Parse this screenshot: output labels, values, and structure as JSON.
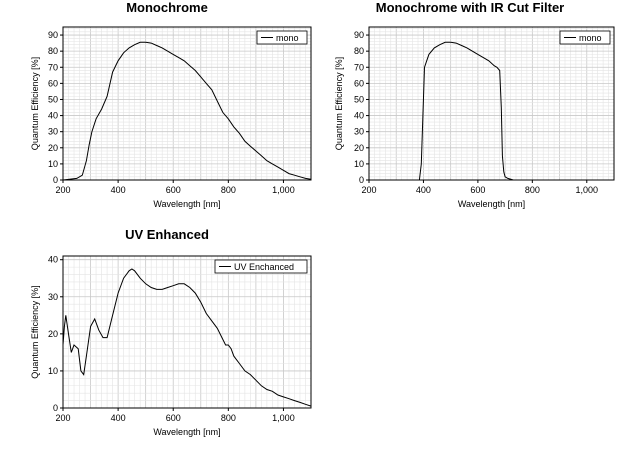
{
  "chart_data": [
    {
      "type": "line",
      "title": "Monochrome",
      "xlabel": "Wavelength [nm]",
      "ylabel": "Quantum Efficiency [%]",
      "xlim": [
        200,
        1100
      ],
      "ylim": [
        0,
        95
      ],
      "xticks": [
        200,
        400,
        600,
        800,
        1000
      ],
      "xtick_labels": [
        "200",
        "400",
        "600",
        "800",
        "1,000"
      ],
      "yticks": [
        0,
        10,
        20,
        30,
        40,
        50,
        60,
        70,
        80,
        90
      ],
      "grid": true,
      "legend_position": "top-right",
      "series": [
        {
          "name": "mono",
          "x": [
            200,
            250,
            270,
            285,
            295,
            305,
            320,
            340,
            360,
            380,
            400,
            420,
            440,
            460,
            480,
            500,
            520,
            540,
            560,
            580,
            600,
            620,
            640,
            660,
            680,
            700,
            720,
            740,
            760,
            780,
            800,
            820,
            840,
            860,
            880,
            900,
            920,
            940,
            960,
            980,
            1000,
            1020,
            1040,
            1060,
            1080,
            1100
          ],
          "y": [
            0,
            1,
            3,
            12,
            22,
            30,
            38,
            44,
            52,
            67,
            74,
            79,
            82,
            84,
            85.5,
            85.5,
            85,
            83.5,
            82,
            80,
            78,
            76,
            74,
            71,
            68,
            64,
            60,
            56,
            49,
            42,
            38,
            33,
            29,
            24,
            21,
            18,
            15,
            12,
            10,
            8,
            6,
            4,
            3,
            2,
            1,
            0.5
          ]
        }
      ]
    },
    {
      "type": "line",
      "title": "Monochrome with IR Cut Filter",
      "xlabel": "Wavelength [nm]",
      "ylabel": "Quantum Efficiency [%]",
      "xlim": [
        200,
        1100
      ],
      "ylim": [
        0,
        95
      ],
      "xticks": [
        200,
        400,
        600,
        800,
        1000
      ],
      "xtick_labels": [
        "200",
        "400",
        "600",
        "800",
        "1,000"
      ],
      "yticks": [
        0,
        10,
        20,
        30,
        40,
        50,
        60,
        70,
        80,
        90
      ],
      "grid": true,
      "legend_position": "top-right",
      "series": [
        {
          "name": "mono",
          "x": [
            200,
            385,
            392,
            398,
            404,
            412,
            420,
            440,
            460,
            480,
            500,
            520,
            540,
            560,
            580,
            600,
            620,
            640,
            660,
            670,
            680,
            686,
            690,
            695,
            700,
            710,
            730,
            1100
          ],
          "y": [
            0,
            0,
            10,
            40,
            70,
            74,
            78,
            82,
            84,
            85.5,
            85.5,
            85,
            83.5,
            82,
            80,
            78,
            76,
            74,
            71,
            70,
            68,
            45,
            15,
            5,
            2,
            1,
            0,
            0
          ]
        }
      ]
    },
    {
      "type": "line",
      "title": "UV Enhanced",
      "xlabel": "Wavelength [nm]",
      "ylabel": "Quantum Efficiency [%]",
      "xlim": [
        200,
        1100
      ],
      "ylim": [
        0,
        41
      ],
      "xticks": [
        200,
        400,
        600,
        800,
        1000
      ],
      "xtick_labels": [
        "200",
        "400",
        "600",
        "800",
        "1,000"
      ],
      "yticks": [
        0,
        10,
        20,
        30,
        40
      ],
      "grid": true,
      "legend_position": "top-right",
      "series": [
        {
          "name": "UV Enchanced",
          "x": [
            200,
            205,
            210,
            220,
            230,
            240,
            255,
            265,
            275,
            285,
            300,
            315,
            330,
            345,
            360,
            380,
            400,
            420,
            440,
            450,
            460,
            480,
            500,
            520,
            540,
            560,
            580,
            600,
            620,
            640,
            660,
            680,
            700,
            720,
            740,
            760,
            780,
            790,
            800,
            810,
            820,
            830,
            840,
            860,
            880,
            900,
            920,
            940,
            960,
            980,
            1000,
            1020,
            1040,
            1060,
            1080,
            1100
          ],
          "y": [
            17,
            22,
            25,
            20,
            15,
            17,
            16,
            10,
            9,
            14,
            22,
            24,
            21,
            19,
            19,
            25,
            31,
            35,
            37,
            37.5,
            37,
            35,
            33.5,
            32.5,
            32,
            32,
            32.5,
            33,
            33.5,
            33.5,
            32.5,
            31,
            28.5,
            25.5,
            23.5,
            21.5,
            18.5,
            17,
            17,
            16,
            14,
            13,
            12,
            10,
            9,
            7.5,
            6,
            5,
            4.5,
            3.5,
            3,
            2.5,
            2,
            1.5,
            1,
            0.5
          ]
        }
      ]
    }
  ]
}
